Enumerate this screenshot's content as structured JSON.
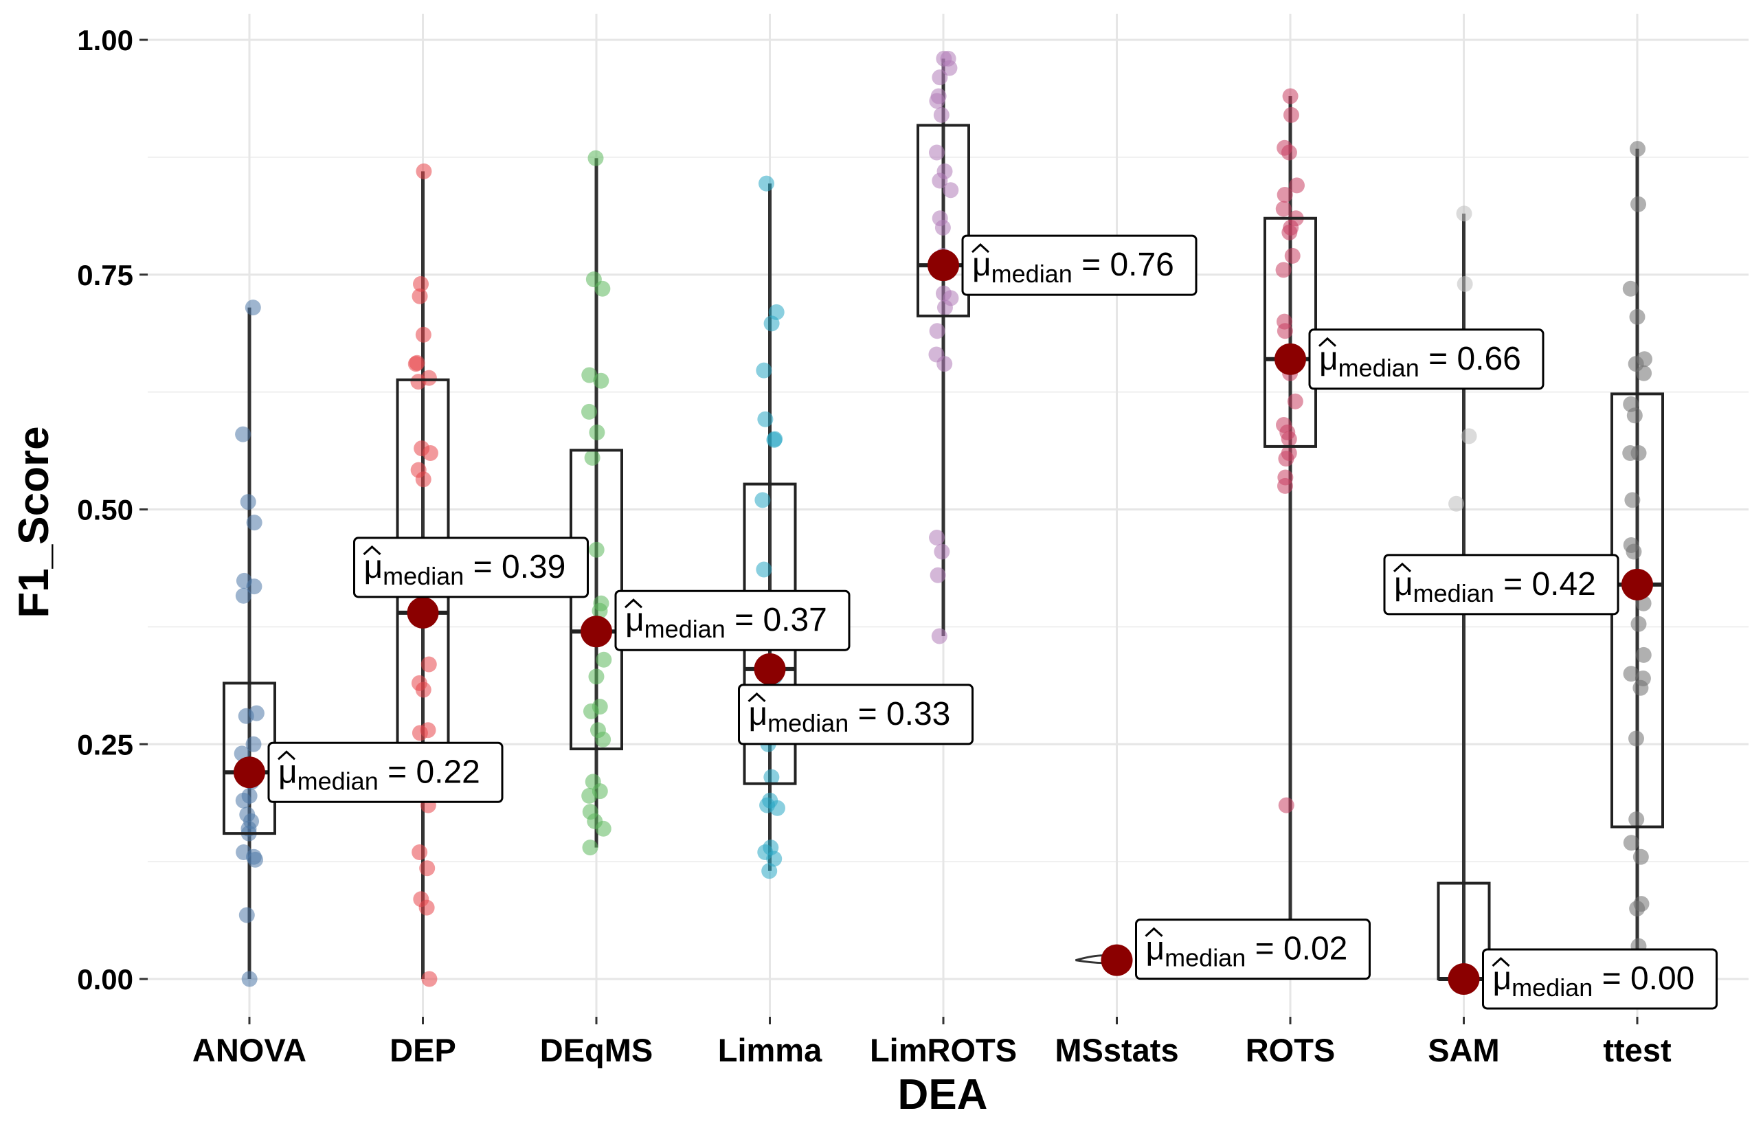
{
  "chart_data": {
    "type": "box",
    "xlabel": "DEA",
    "ylabel": "F1_Score",
    "ylim": [
      -0.04,
      1.04
    ],
    "yticks": [
      0.0,
      0.25,
      0.5,
      0.75,
      1.0
    ],
    "ytick_labels": [
      "0.00",
      "0.25",
      "0.50",
      "0.75",
      "1.00"
    ],
    "grid": true,
    "categories": [
      "ANOVA",
      "DEP",
      "DEqMS",
      "Limma",
      "LimROTS",
      "MSstats",
      "ROTS",
      "SAM",
      "ttest"
    ],
    "colors": [
      "#4e79a7",
      "#e8454b",
      "#5cb85c",
      "#29a8c4",
      "#b07cb8",
      "#7f7f7f",
      "#c94063",
      "#bdbdbd",
      "#6f6f6f"
    ],
    "median_point_color": "#8b0000",
    "label_prefix": "μ",
    "label_subscript": "median",
    "series": [
      {
        "name": "ANOVA",
        "median": 0.22,
        "median_label": "= 0.22",
        "q1": 0.155,
        "q3": 0.315,
        "min": 0.0,
        "max": 0.715,
        "points": [
          0.715,
          0.58,
          0.508,
          0.486,
          0.424,
          0.418,
          0.408,
          0.283,
          0.28,
          0.25,
          0.24,
          0.22,
          0.21,
          0.195,
          0.19,
          0.175,
          0.168,
          0.16,
          0.155,
          0.135,
          0.13,
          0.127,
          0.068,
          0.0
        ]
      },
      {
        "name": "DEP",
        "median": 0.39,
        "median_label": "= 0.39",
        "q1": 0.25,
        "q3": 0.638,
        "min": 0.0,
        "max": 0.86,
        "points": [
          0.86,
          0.74,
          0.727,
          0.686,
          0.656,
          0.655,
          0.64,
          0.636,
          0.565,
          0.56,
          0.542,
          0.532,
          0.39,
          0.335,
          0.315,
          0.308,
          0.265,
          0.262,
          0.185,
          0.135,
          0.118,
          0.085,
          0.076,
          0.0
        ]
      },
      {
        "name": "DEqMS",
        "median": 0.37,
        "median_label": "= 0.37",
        "q1": 0.245,
        "q3": 0.563,
        "min": 0.14,
        "max": 0.874,
        "points": [
          0.874,
          0.745,
          0.735,
          0.643,
          0.637,
          0.604,
          0.582,
          0.555,
          0.457,
          0.4,
          0.392,
          0.34,
          0.322,
          0.29,
          0.285,
          0.265,
          0.255,
          0.21,
          0.2,
          0.195,
          0.178,
          0.168,
          0.16,
          0.14
        ]
      },
      {
        "name": "Limma",
        "median": 0.33,
        "median_label": "= 0.33",
        "q1": 0.208,
        "q3": 0.527,
        "min": 0.115,
        "max": 0.847,
        "points": [
          0.847,
          0.71,
          0.698,
          0.648,
          0.596,
          0.575,
          0.574,
          0.51,
          0.436,
          0.33,
          0.322,
          0.3,
          0.25,
          0.215,
          0.19,
          0.185,
          0.182,
          0.14,
          0.135,
          0.128,
          0.115
        ]
      },
      {
        "name": "LimROTS",
        "median": 0.76,
        "median_label": "= 0.76",
        "q1": 0.706,
        "q3": 0.909,
        "min": 0.365,
        "max": 0.98,
        "points": [
          0.98,
          0.98,
          0.97,
          0.96,
          0.94,
          0.935,
          0.92,
          0.88,
          0.86,
          0.85,
          0.84,
          0.81,
          0.8,
          0.77,
          0.765,
          0.73,
          0.725,
          0.715,
          0.69,
          0.665,
          0.655,
          0.47,
          0.455,
          0.43,
          0.365
        ]
      },
      {
        "name": "MSstats",
        "median": 0.02,
        "median_label": "= 0.02",
        "q1": 0.02,
        "q3": 0.02,
        "min": 0.02,
        "max": 0.02,
        "points": [
          0.02
        ]
      },
      {
        "name": "ROTS",
        "median": 0.66,
        "median_label": "= 0.66",
        "q1": 0.567,
        "q3": 0.81,
        "min": 0.055,
        "max": 0.94,
        "points": [
          0.94,
          0.92,
          0.885,
          0.88,
          0.845,
          0.835,
          0.82,
          0.81,
          0.8,
          0.795,
          0.77,
          0.755,
          0.7,
          0.69,
          0.66,
          0.645,
          0.615,
          0.59,
          0.582,
          0.575,
          0.56,
          0.554,
          0.534,
          0.525,
          0.185,
          0.055
        ]
      },
      {
        "name": "SAM",
        "median": 0.0,
        "median_label": "= 0.00",
        "q1": 0.0,
        "q3": 0.102,
        "min": 0.0,
        "max": 0.815,
        "points": [
          0.815,
          0.74,
          0.578,
          0.506,
          0.0
        ]
      },
      {
        "name": "ttest",
        "median": 0.42,
        "median_label": "= 0.42",
        "q1": 0.162,
        "q3": 0.623,
        "min": 0.03,
        "max": 0.884,
        "points": [
          0.884,
          0.825,
          0.735,
          0.705,
          0.66,
          0.655,
          0.645,
          0.612,
          0.6,
          0.56,
          0.56,
          0.51,
          0.462,
          0.455,
          0.418,
          0.4,
          0.378,
          0.345,
          0.325,
          0.32,
          0.31,
          0.256,
          0.17,
          0.145,
          0.13,
          0.08,
          0.075,
          0.035
        ]
      }
    ]
  }
}
